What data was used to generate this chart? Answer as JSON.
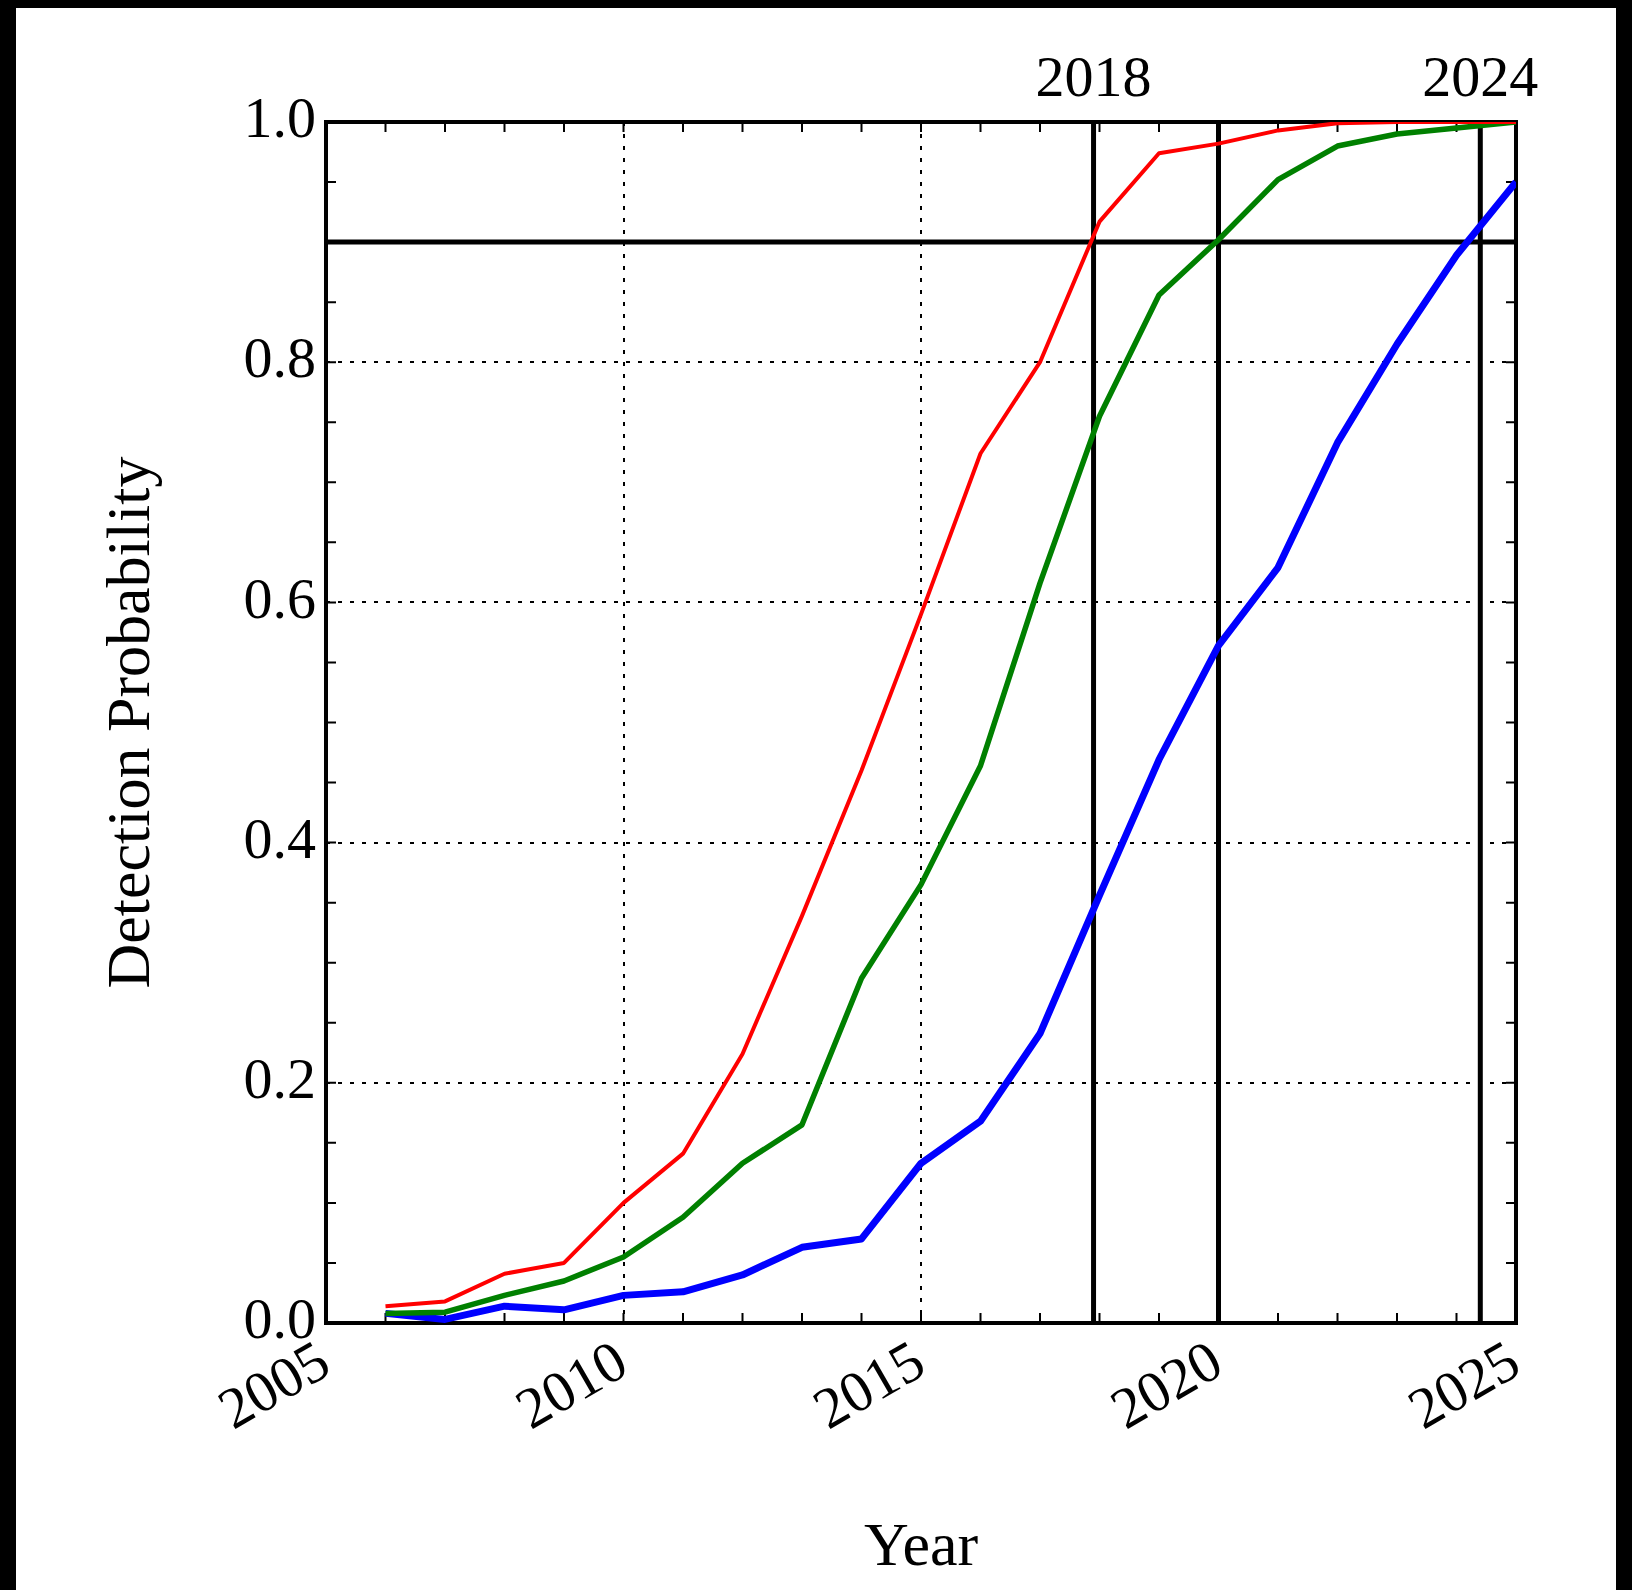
{
  "chart_data": {
    "type": "line",
    "xlabel": "Year",
    "ylabel": "Detection Probability",
    "x": [
      2006,
      2007,
      2008,
      2009,
      2010,
      2011,
      2012,
      2013,
      2014,
      2015,
      2016,
      2017,
      2018,
      2019,
      2020,
      2021,
      2022,
      2023,
      2024,
      2025
    ],
    "series": [
      {
        "color": "#ff0000",
        "values": [
          0.014,
          0.018,
          0.041,
          0.05,
          0.1,
          0.141,
          0.224,
          0.339,
          0.46,
          0.59,
          0.724,
          0.8,
          0.917,
          0.974,
          0.982,
          0.993,
          0.999,
          1.0,
          1.0,
          1.0
        ]
      },
      {
        "color": "#008000",
        "values": [
          0.008,
          0.009,
          0.023,
          0.035,
          0.055,
          0.088,
          0.133,
          0.165,
          0.287,
          0.365,
          0.464,
          0.616,
          0.755,
          0.856,
          0.902,
          0.952,
          0.98,
          0.99,
          0.995,
          1.0
        ]
      },
      {
        "color": "#0000ff",
        "values": [
          0.008,
          0.003,
          0.014,
          0.011,
          0.023,
          0.026,
          0.04,
          0.063,
          0.07,
          0.133,
          0.168,
          0.241,
          0.356,
          0.469,
          0.564,
          0.629,
          0.733,
          0.815,
          0.889,
          0.95
        ]
      }
    ],
    "xlim": [
      2005,
      2025
    ],
    "xticks": [
      2005,
      2010,
      2015,
      2020,
      2025
    ],
    "ylim": [
      0,
      1
    ],
    "yticks": [
      {
        "value": 0,
        "label": "0.0"
      },
      {
        "value": 0.2,
        "label": "0.2"
      },
      {
        "value": 0.4,
        "label": "0.4"
      },
      {
        "value": 0.6,
        "label": "0.6"
      },
      {
        "value": 0.8,
        "label": "0.8"
      },
      {
        "value": 1,
        "label": "1.0"
      }
    ],
    "ref_lines": [
      {
        "axis": "y",
        "value": 0.9,
        "color": "#000000"
      },
      {
        "axis": "x",
        "value": 2017.9,
        "label": "2018",
        "color": "#000000"
      },
      {
        "axis": "x",
        "value": 2020,
        "color": "#000000"
      },
      {
        "axis": "x",
        "value": 2024.4,
        "label": "2024",
        "color": "#000000"
      }
    ],
    "grid": true,
    "line_style": "solid",
    "marker": "none",
    "legend": false
  }
}
